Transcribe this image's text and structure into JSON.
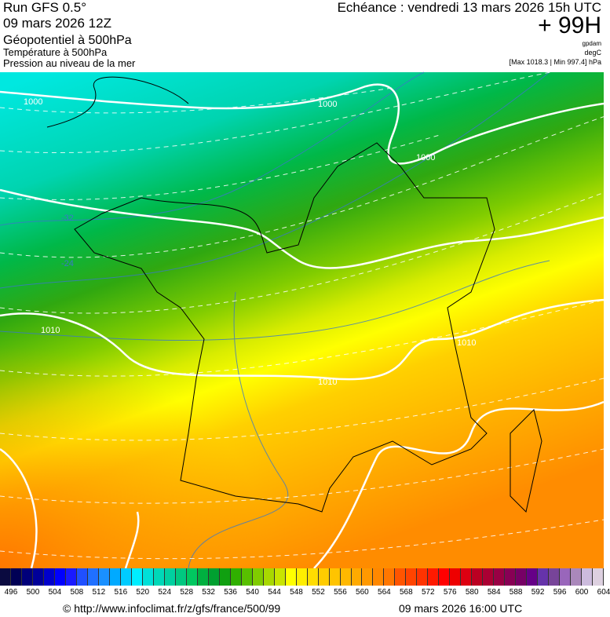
{
  "header": {
    "run": "Run GFS 0.5°",
    "run_date": "09 mars 2026 12Z",
    "param1": "Géopotentiel à 500hPa",
    "param2": "Température à 500hPa",
    "param3": "Pression au niveau de la mer",
    "echeance": "Echéance : vendredi 13 mars 2026 15h UTC",
    "lead": "+ 99H",
    "unit1": "gpdam",
    "unit2": "degC",
    "unit3": "[Max 1018.3 | Min 997.4] hPa"
  },
  "map": {
    "isobar_labels": [
      "1000",
      "1000",
      "1000",
      "1010",
      "1010",
      "1010"
    ],
    "isotherm_labels": [
      "-32",
      "-24"
    ],
    "isobar_color": "#ffffff",
    "isotherm_color": "#3a78c8"
  },
  "colorbar": {
    "labels": [
      "496",
      "500",
      "504",
      "508",
      "512",
      "516",
      "520",
      "524",
      "528",
      "532",
      "536",
      "540",
      "544",
      "548",
      "552",
      "556",
      "560",
      "564",
      "568",
      "572",
      "576",
      "580",
      "584",
      "588",
      "592",
      "596",
      "600",
      "604"
    ],
    "colors": [
      "#0a0a40",
      "#000055",
      "#00007a",
      "#000099",
      "#0000cc",
      "#0000ff",
      "#1a1aff",
      "#2050ff",
      "#2070ff",
      "#1a90ff",
      "#00aaff",
      "#00ccff",
      "#00eeff",
      "#00e0d8",
      "#00d8b8",
      "#00d0a0",
      "#00c880",
      "#00c860",
      "#00b040",
      "#00a030",
      "#10a010",
      "#30b000",
      "#58c000",
      "#80cc00",
      "#a8d800",
      "#c8e400",
      "#ffff00",
      "#ffee00",
      "#ffdd00",
      "#ffcc00",
      "#ffc400",
      "#ffb800",
      "#ffaa00",
      "#ff9900",
      "#ff8800",
      "#ff7700",
      "#ff5500",
      "#ff4400",
      "#ff3300",
      "#ff1a00",
      "#ff0000",
      "#ee0000",
      "#dd0011",
      "#bb0022",
      "#aa0033",
      "#990044",
      "#880055",
      "#770066",
      "#660088",
      "#6633aa",
      "#774499",
      "#9966bb",
      "#aa88bb",
      "#ccbbdd",
      "#ddd0e0"
    ]
  },
  "footer": {
    "copyright": "© http://www.infoclimat.fr/z/gfs/france/500/99",
    "generated": "09 mars 2026 16:00 UTC"
  }
}
